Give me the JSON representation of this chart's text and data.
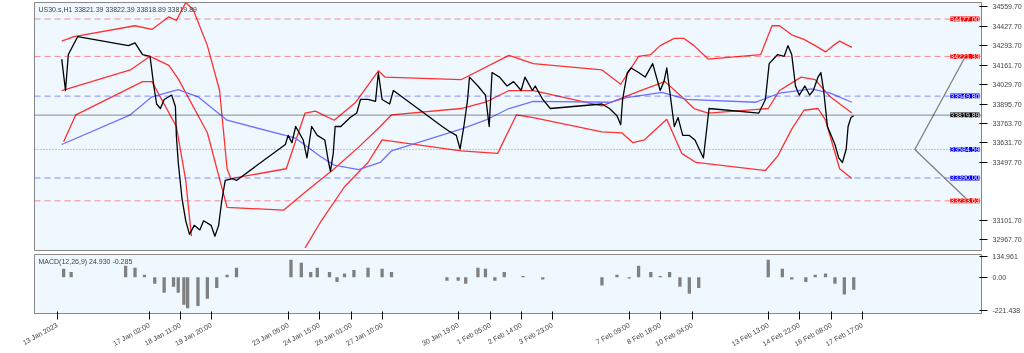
{
  "chart_data": [
    {
      "type": "line",
      "title": "US30.s,H1  33821.39 33822.39 33818.89 33819.89",
      "xlim": [
        "2023-01-12T00:00",
        "2023-02-23T00:00"
      ],
      "ylim": [
        32894,
        34590
      ],
      "tick_labels": "y",
      "yticks": [
        {
          "value": 34559.7,
          "label": "34559.70"
        },
        {
          "value": 34427.7,
          "label": "34427.70"
        },
        {
          "value": 34293.7,
          "label": "34293.70"
        },
        {
          "value": 34161.7,
          "label": "34161.70"
        },
        {
          "value": 34029.7,
          "label": "34029.70"
        },
        {
          "value": 33895.7,
          "label": "33895.70"
        },
        {
          "value": 33763.7,
          "label": "33763.70"
        },
        {
          "value": 33631.7,
          "label": "33631.70"
        },
        {
          "value": 33497.7,
          "label": "33497.70"
        },
        {
          "value": 33101.7,
          "label": "33101.70"
        },
        {
          "value": 32967.7,
          "label": "32967.70"
        }
      ],
      "series": [
        {
          "color": "#ff3030",
          "x": [
            "2023-01-13T05:00",
            "2023-01-13T18:00",
            "2023-01-16T11:00",
            "2023-01-17T05:00",
            "2023-01-17T23:00",
            "2023-01-18T07:00",
            "2023-01-18T17:00",
            "2023-01-19T01:00",
            "2023-01-19T16:00",
            "2023-01-20T05:00",
            "2023-01-20T13:00",
            "2023-01-20T17:00",
            "2023-01-23T04:00",
            "2023-01-24T00:00",
            "2023-01-24T11:00",
            "2023-01-25T07:00",
            "2023-01-26T06:00",
            "2023-01-27T06:00",
            "2023-01-27T13:00",
            "2023-01-30T22:00",
            "2023-02-02T01:00",
            "2023-02-03T03:00",
            "2023-02-06T04:00",
            "2023-02-07T00:00",
            "2023-02-07T19:00",
            "2023-02-08T08:00",
            "2023-02-08T18:00",
            "2023-02-09T09:00",
            "2023-02-09T19:00",
            "2023-02-10T06:00",
            "2023-02-10T21:00",
            "2023-02-13T05:00",
            "2023-02-13T17:00",
            "2023-02-14T01:00",
            "2023-02-14T14:00",
            "2023-02-15T03:00",
            "2023-02-15T15:00",
            "2023-02-16T02:00",
            "2023-02-16T10:00",
            "2023-02-16T17:00",
            "2023-02-17T06:00"
          ],
          "values": [
            34326,
            34357,
            34431,
            34406,
            34492,
            34467,
            34590,
            34541,
            34295,
            33988,
            33453,
            33386,
            33453,
            33834,
            33847,
            33785,
            33908,
            34123,
            34080,
            34062,
            34228,
            34172,
            34129,
            34031,
            34222,
            34234,
            34295,
            34345,
            34345,
            34295,
            34203,
            34234,
            34431,
            34431,
            34369,
            34338,
            34295,
            34252,
            34295,
            34326,
            34283
          ]
        },
        {
          "color": "#ff3030",
          "x": [
            "2023-01-13T05:00",
            "2023-01-16T06:00",
            "2023-01-17T03:00",
            "2023-01-17T23:00",
            "2023-01-18T09:00",
            "2023-01-19T16:00",
            "2023-01-20T13:00",
            "2023-01-23T01:00",
            "2023-01-24T00:00",
            "2023-01-25T07:00",
            "2023-01-26T09:00",
            "2023-01-27T08:00",
            "2023-01-27T20:00",
            "2023-01-30T22:00",
            "2023-02-01T00:00",
            "2023-02-02T01:00",
            "2023-02-03T03:00",
            "2023-02-06T04:00",
            "2023-02-07T21:00",
            "2023-02-08T23:00",
            "2023-02-09T17:00",
            "2023-02-10T06:00",
            "2023-02-10T21:00",
            "2023-02-13T13:00",
            "2023-02-14T01:00",
            "2023-02-15T00:00",
            "2023-02-15T15:00",
            "2023-02-16T07:00",
            "2023-02-17T06:00"
          ],
          "values": [
            33988,
            34129,
            34222,
            34160,
            34068,
            33699,
            33189,
            33170,
            33293,
            33453,
            33601,
            33742,
            33822,
            33865,
            33908,
            33988,
            33988,
            33883,
            33988,
            34049,
            33945,
            33865,
            33834,
            33865,
            33988,
            34080,
            34062,
            33945,
            33834
          ]
        },
        {
          "color": "#ff3030",
          "x": [
            "2023-01-13T07:00",
            "2023-01-13T20:00",
            "2023-01-16T19:00",
            "2023-01-17T05:00",
            "2023-01-18T07:00",
            "2023-01-18T17:00",
            "2023-01-18T23:00",
            "2023-01-20T00:00",
            "2023-01-24T00:00",
            "2023-01-24T16:00",
            "2023-01-25T18:00",
            "2023-01-26T19:00",
            "2023-01-27T10:00",
            "2023-01-30T22:00",
            "2023-02-01T13:00",
            "2023-02-02T09:00",
            "2023-02-03T03:00",
            "2023-02-06T04:00",
            "2023-02-07T01:00",
            "2023-02-07T13:00",
            "2023-02-08T01:00",
            "2023-02-09T01:00",
            "2023-02-09T17:00",
            "2023-02-10T08:00",
            "2023-02-13T10:00",
            "2023-02-13T23:00",
            "2023-02-14T14:00",
            "2023-02-15T03:00",
            "2023-02-15T18:00",
            "2023-02-16T02:00",
            "2023-02-16T17:00",
            "2023-02-17T06:00"
          ],
          "values": [
            33638,
            33822,
            34049,
            34049,
            33742,
            33373,
            32992,
            null,
            32912,
            33084,
            33330,
            33496,
            33650,
            33576,
            33558,
            33822,
            33803,
            33705,
            33699,
            33631,
            33650,
            33791,
            33558,
            33496,
            33441,
            33539,
            33724,
            33853,
            33865,
            33785,
            33453,
            33386
          ]
        },
        {
          "color": "#7070ff",
          "x": [
            "2023-01-13T05:00",
            "2023-01-16T06:00",
            "2023-01-17T05:00",
            "2023-01-18T09:00",
            "2023-01-19T06:00",
            "2023-01-20T13:00",
            "2023-01-23T14:00",
            "2023-01-24T16:00",
            "2023-01-25T07:00",
            "2023-01-26T09:00",
            "2023-01-27T08:00",
            "2023-01-27T20:00",
            "2023-01-30T22:00",
            "2023-02-01T00:00",
            "2023-02-02T01:00",
            "2023-02-03T03:00",
            "2023-02-06T14:00",
            "2023-02-07T06:00",
            "2023-02-08T20:00",
            "2023-02-09T22:00",
            "2023-02-13T00:00",
            "2023-02-14T01:00",
            "2023-02-15T11:00",
            "2023-02-16T07:00",
            "2023-02-17T06:00"
          ],
          "values": [
            33619,
            33822,
            33945,
            33994,
            33945,
            33785,
            33662,
            33539,
            33478,
            33447,
            33496,
            33576,
            33724,
            33785,
            33865,
            33914,
            33908,
            33939,
            33976,
            33927,
            33908,
            33970,
            34000,
            33970,
            33908
          ]
        },
        {
          "color": "#000000",
          "x": [
            "2023-01-13T05:00",
            "2023-01-13T09:00",
            "2023-01-13T12:00",
            "2023-01-13T18:00",
            "2023-01-13T22:00",
            "2023-01-16T04:00",
            "2023-01-16T11:00",
            "2023-01-16T19:00",
            "2023-01-17T03:00",
            "2023-01-17T07:00",
            "2023-01-17T10:00",
            "2023-01-17T14:00",
            "2023-01-17T18:00",
            "2023-01-18T02:00",
            "2023-01-18T06:00",
            "2023-01-18T07:00",
            "2023-01-18T09:00",
            "2023-01-18T13:00",
            "2023-01-18T17:00",
            "2023-01-18T21:00",
            "2023-01-19T02:00",
            "2023-01-19T08:00",
            "2023-01-19T12:00",
            "2023-01-19T20:00",
            "2023-01-20T00:00",
            "2023-01-20T04:00",
            "2023-01-20T07:00",
            "2023-01-20T11:00",
            "2023-01-20T19:00",
            "2023-01-20T23:00",
            "2023-01-23T03:00",
            "2023-01-23T06:00",
            "2023-01-23T10:00",
            "2023-01-23T14:00",
            "2023-01-23T22:00",
            "2023-01-24T02:00",
            "2023-01-24T07:00",
            "2023-01-24T13:00",
            "2023-01-24T21:00",
            "2023-01-25T01:00",
            "2023-01-25T03:00",
            "2023-01-25T06:00",
            "2023-01-25T08:00",
            "2023-01-25T14:00",
            "2023-01-26T00:00",
            "2023-01-26T07:00",
            "2023-01-26T11:00",
            "2023-01-26T19:00",
            "2023-01-27T03:00",
            "2023-01-27T06:00",
            "2023-01-27T10:00",
            "2023-01-27T18:00",
            "2023-01-27T22:00",
            "2023-01-30T02:00",
            "2023-01-30T09:00",
            "2023-01-30T17:00",
            "2023-01-30T21:00",
            "2023-01-31T01:00",
            "2023-01-31T05:00",
            "2023-01-31T07:00",
            "2023-01-31T16:00",
            "2023-02-01T00:00",
            "2023-02-01T04:00",
            "2023-02-01T07:00",
            "2023-02-01T15:00",
            "2023-02-01T23:00",
            "2023-02-02T06:00",
            "2023-02-02T14:00",
            "2023-02-02T18:00",
            "2023-02-03T02:00",
            "2023-02-03T05:00",
            "2023-02-03T13:00",
            "2023-02-03T21:00",
            "2023-02-06T04:00",
            "2023-02-06T12:00",
            "2023-02-06T20:00",
            "2023-02-07T00:00",
            "2023-02-07T02:00",
            "2023-02-07T07:00",
            "2023-02-07T11:00",
            "2023-02-07T19:00",
            "2023-02-08T02:00",
            "2023-02-08T10:00",
            "2023-02-08T18:00",
            "2023-02-08T22:00",
            "2023-02-09T01:00",
            "2023-02-09T09:00",
            "2023-02-09T13:00",
            "2023-02-09T18:00",
            "2023-02-10T01:00",
            "2023-02-10T07:00",
            "2023-02-10T16:00",
            "2023-02-10T22:00",
            "2023-02-13T03:00",
            "2023-02-13T10:00",
            "2023-02-13T14:00",
            "2023-02-13T23:00",
            "2023-02-14T06:00",
            "2023-02-14T10:00",
            "2023-02-14T14:00",
            "2023-02-14T18:00",
            "2023-02-14T22:00",
            "2023-02-15T04:00",
            "2023-02-15T09:00",
            "2023-02-15T13:00",
            "2023-02-15T18:00",
            "2023-02-15T21:00",
            "2023-02-16T00:00",
            "2023-02-16T04:00",
            "2023-02-16T12:00",
            "2023-02-16T16:00",
            "2023-02-16T20:00",
            "2023-02-17T00:00",
            "2023-02-17T02:00",
            "2023-02-17T05:00",
            "2023-02-17T08:00"
          ],
          "values": [
            34203,
            33988,
            34234,
            34308,
            34357,
            34295,
            34314,
            34234,
            34222,
            34019,
            33896,
            33865,
            33927,
            33957,
            33877,
            33681,
            33496,
            33250,
            33097,
            33004,
            33066,
            33035,
            33097,
            33066,
            32992,
            33066,
            33219,
            33373,
            33386,
            33373,
            33619,
            33681,
            33631,
            33742,
            33650,
            33527,
            33742,
            33681,
            33650,
            33496,
            33435,
            33558,
            33742,
            33742,
            33803,
            33834,
            33927,
            33927,
            33914,
            34111,
            33927,
            33896,
            33988,
            33742,
            33711,
            33681,
            33588,
            33742,
            33927,
            34080,
            34019,
            33957,
            33742,
            34111,
            34080,
            34019,
            34049,
            33988,
            34080,
            33988,
            34019,
            33927,
            33865,
            33896,
            33865,
            33816,
            33754,
            33927,
            34111,
            34142,
            34111,
            34080,
            34172,
            33988,
            34049,
            34142,
            33742,
            33803,
            33681,
            33681,
            33650,
            33527,
            33865,
            33834,
            33927,
            34172,
            34234,
            34222,
            34295,
            34234,
            34019,
            33957,
            34019,
            33957,
            33988,
            34080,
            34111,
            33988,
            33742,
            33619,
            33527,
            33496,
            33588,
            33742,
            33803,
            33816
          ]
        },
        {
          "color": "#808080",
          "x": [
            "2023-02-20T01:00",
            "2023-02-22T07:00"
          ],
          "values": [
            33585,
            34222
          ]
        },
        {
          "color": "#808080",
          "x": [
            "2023-02-20T01:00",
            "2023-02-22T10:00"
          ],
          "values": [
            33585,
            33234
          ]
        }
      ],
      "ref_lines": [
        {
          "axis": "y",
          "value": 34477.0,
          "label": "34477.00",
          "color": "#ff0000",
          "line_style": "dashed"
        },
        {
          "axis": "y",
          "value": 34221.33,
          "label": "34221.33",
          "color": "#ff0000",
          "line_style": "dashed"
        },
        {
          "axis": "y",
          "value": 33949.8,
          "label": "33949.80",
          "color": "#0000ff",
          "line_style": "dashed"
        },
        {
          "axis": "y",
          "value": 33819.89,
          "label": "33819.89",
          "color": "#000000",
          "line_style": "solid"
        },
        {
          "axis": "y",
          "value": 33584.59,
          "label": "33584.59",
          "color": "#0000ff",
          "line_style": "dotted"
        },
        {
          "axis": "y",
          "value": 33390.0,
          "label": "33390.00",
          "color": "#0000ff",
          "line_style": "dashed"
        },
        {
          "axis": "y",
          "value": 33233.63,
          "label": "33233.63",
          "color": "#ff0000",
          "line_style": "dashed"
        }
      ]
    },
    {
      "type": "bar",
      "title": "MACD(12,26,9) 24.930 -0.285",
      "xlim": [
        "2023-01-12T00:00",
        "2023-02-23T00:00"
      ],
      "ylim": [
        -240,
        150
      ],
      "yticks": [
        {
          "value": 134.961,
          "label": "134.961"
        },
        {
          "value": 0,
          "label": "0.00"
        },
        {
          "value": -221.438,
          "label": "-221.438"
        }
      ],
      "xticks": [
        {
          "value": "2023-01-13T00:00",
          "label": "13 Jan 2023"
        },
        {
          "value": "2023-01-17T02:00",
          "label": "17 Jan 02:00"
        },
        {
          "value": "2023-01-18T11:00",
          "label": "18 Jan 11:00"
        },
        {
          "value": "2023-01-19T20:00",
          "label": "19 Jan 20:00"
        },
        {
          "value": "2023-01-23T06:00",
          "label": "23 Jan 06:00"
        },
        {
          "value": "2023-01-24T15:00",
          "label": "24 Jan 15:00"
        },
        {
          "value": "2023-01-26T01:00",
          "label": "26 Jan 01:00"
        },
        {
          "value": "2023-01-27T10:00",
          "label": "27 Jan 10:00"
        },
        {
          "value": "2023-01-30T19:00",
          "label": "30 Jan 19:00"
        },
        {
          "value": "2023-02-01T05:00",
          "label": "1 Feb 05:00"
        },
        {
          "value": "2023-02-02T14:00",
          "label": "2 Feb 14:00"
        },
        {
          "value": "2023-02-03T23:00",
          "label": "3 Feb 23:00"
        },
        {
          "value": "2023-02-07T09:00",
          "label": "7 Feb 09:00"
        },
        {
          "value": "2023-02-08T18:00",
          "label": "8 Feb 18:00"
        },
        {
          "value": "2023-02-10T04:00",
          "label": "10 Feb 04:00"
        },
        {
          "value": "2023-02-13T13:00",
          "label": "13 Feb 13:00"
        },
        {
          "value": "2023-02-14T22:00",
          "label": "14 Feb 22:00"
        },
        {
          "value": "2023-02-16T08:00",
          "label": "16 Feb 08:00"
        },
        {
          "value": "2023-02-17T17:00",
          "label": "17 Feb 17:00"
        }
      ],
      "series": [
        {
          "color": "#808080",
          "x": [
            "2023-01-13T07:00",
            "2023-01-13T15:00",
            "2023-01-16T01:00",
            "2023-01-16T11:00",
            "2023-01-16T21:00",
            "2023-01-17T08:00",
            "2023-01-17T18:00",
            "2023-01-18T04:00",
            "2023-01-18T09:00",
            "2023-01-18T15:00",
            "2023-01-18T19:00",
            "2023-01-19T06:00",
            "2023-01-19T16:00",
            "2023-01-20T02:00",
            "2023-01-20T13:00",
            "2023-01-20T23:00",
            "2023-01-23T09:00",
            "2023-01-23T20:00",
            "2023-01-24T06:00",
            "2023-01-24T13:00",
            "2023-01-25T02:00",
            "2023-01-25T10:00",
            "2023-01-25T18:00",
            "2023-01-26T04:00",
            "2023-01-26T19:00",
            "2023-01-27T10:00",
            "2023-01-27T20:00",
            "2023-01-30T07:00",
            "2023-01-30T19:00",
            "2023-01-31T03:00",
            "2023-01-31T16:00",
            "2023-02-01T00:00",
            "2023-02-01T10:00",
            "2023-02-01T20:00",
            "2023-02-02T16:00",
            "2023-02-03T03:00",
            "2023-02-03T13:00",
            "2023-02-06T04:00",
            "2023-02-06T20:00",
            "2023-02-07T09:00",
            "2023-02-07T19:00",
            "2023-02-08T08:00",
            "2023-02-08T18:00",
            "2023-02-09T04:00",
            "2023-02-09T15:00",
            "2023-02-10T01:00",
            "2023-02-10T11:00",
            "2023-02-10T21:00",
            "2023-02-13T13:00",
            "2023-02-14T04:00",
            "2023-02-14T14:00",
            "2023-02-15T05:00",
            "2023-02-15T15:00",
            "2023-02-16T02:00",
            "2023-02-16T12:00",
            "2023-02-16T22:00",
            "2023-02-17T08:00"
          ],
          "values": [
            55,
            35,
            75,
            63,
            16,
            -43,
            -103,
            -63,
            -103,
            -182,
            -205,
            -190,
            -142,
            -71,
            16,
            63,
            115,
            95,
            35,
            63,
            35,
            -32,
            24,
            47,
            63,
            55,
            35,
            -24,
            -24,
            -43,
            63,
            55,
            -24,
            35,
            8,
            0,
            -16,
            -55,
            16,
            -8,
            75,
            35,
            8,
            35,
            -63,
            -110,
            -71,
            0,
            115,
            55,
            -16,
            -32,
            16,
            24,
            -43,
            -114,
            -83
          ]
        }
      ]
    }
  ]
}
